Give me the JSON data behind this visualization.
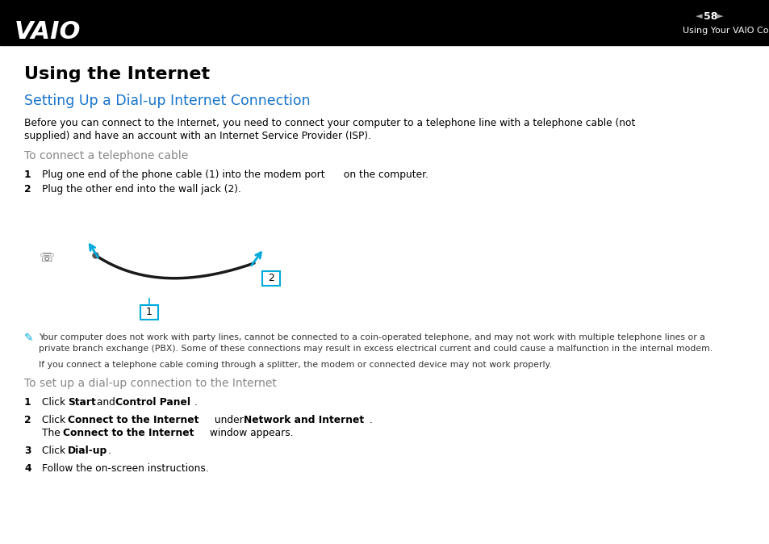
{
  "bg_color": "#ffffff",
  "header_bg": "#000000",
  "header_text_color": "#ffffff",
  "header_page": "58",
  "header_section": "Using Your VAIO Computer",
  "title": "Using the Internet",
  "subtitle": "Setting Up a Dial-up Internet Connection",
  "subtitle_color": "#1874cd",
  "body_line1": "Before you can connect to the Internet, you need to connect your computer to a telephone line with a telephone cable (not",
  "body_line2": "supplied) and have an account with an Internet Service Provider (ISP).",
  "section1_gray": "To connect a telephone cable",
  "step1_num": "1",
  "step1_text": "Plug one end of the phone cable (1) into the modem port      on the computer.",
  "step2_num": "2",
  "step2_text": "Plug the other end into the wall jack (2).",
  "note_line1": "Your computer does not work with party lines, cannot be connected to a coin-operated telephone, and may not work with multiple telephone lines or a",
  "note_line2": "private branch exchange (PBX). Some of these connections may result in excess electrical current and could cause a malfunction in the internal modem.",
  "note_line3": "If you connect a telephone cable coming through a splitter, the modem or connected device may not work properly.",
  "section2_gray": "To set up a dial-up connection to the Internet",
  "net_step1_num": "1",
  "net_step2_num": "2",
  "net_step3_num": "3",
  "net_step4_num": "4",
  "net_step6_text": "Follow the on-screen instructions.",
  "cable_color": "#1a1a1a",
  "arrow_color": "#00aadd",
  "label_border_color": "#00aadd",
  "gray_text_color": "#888888",
  "note_text_color": "#333333",
  "font_size_body": 8.8,
  "font_size_step": 8.8,
  "font_size_note": 7.8,
  "font_size_section": 10.0,
  "font_size_subtitle": 12.5,
  "font_size_title": 16.0
}
